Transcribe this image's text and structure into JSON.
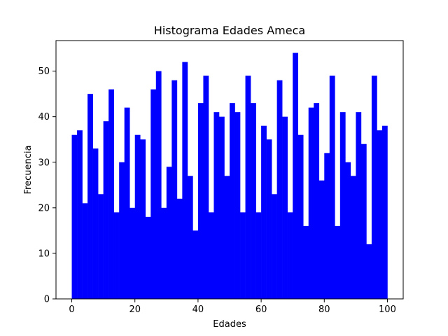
{
  "chart_data": {
    "type": "bar",
    "title": "Histograma Edades Ameca",
    "xlabel": "Edades",
    "ylabel": "Frecuencia",
    "xlim": [
      -5,
      105
    ],
    "ylim": [
      0,
      56.7
    ],
    "xticks": [
      0,
      20,
      40,
      60,
      80,
      100
    ],
    "yticks": [
      0,
      10,
      20,
      30,
      40,
      50
    ],
    "bin_start": 0,
    "bin_end": 100,
    "bar_color": "#0000ff",
    "grid": false,
    "values": [
      36,
      37,
      21,
      45,
      33,
      23,
      39,
      46,
      19,
      30,
      42,
      20,
      36,
      35,
      18,
      46,
      50,
      20,
      29,
      48,
      22,
      52,
      27,
      15,
      43,
      49,
      19,
      41,
      40,
      27,
      43,
      41,
      19,
      49,
      43,
      19,
      38,
      35,
      23,
      48,
      40,
      19,
      54,
      36,
      16,
      42,
      43,
      26,
      32,
      49,
      16,
      41,
      30,
      27,
      41,
      34,
      12,
      49,
      37,
      38
    ]
  }
}
